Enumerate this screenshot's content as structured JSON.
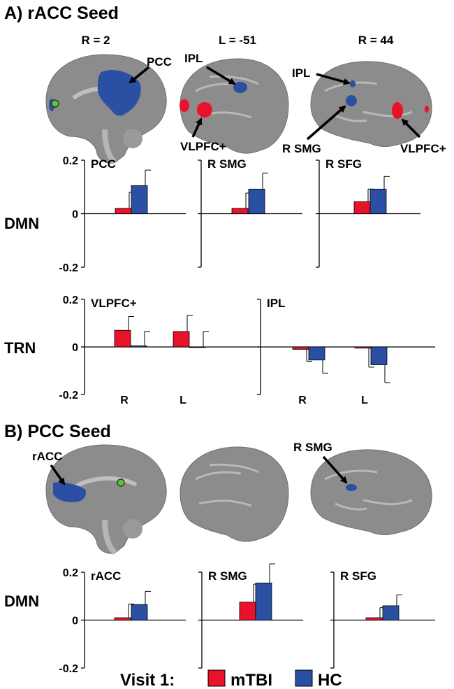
{
  "panel_a": {
    "title": "A) rACC Seed",
    "coords": [
      "R = 2",
      "L = -51",
      "R = 44"
    ],
    "brain_labels": [
      "PCC",
      "IPL",
      "VLPFC+",
      "IPL",
      "R SMG",
      "VLPFC+"
    ],
    "row_labels": [
      "DMN",
      "TRN"
    ]
  },
  "panel_b": {
    "title": "B) PCC Seed",
    "brain_labels": [
      "rACC",
      "R SMG"
    ],
    "row_labels": [
      "DMN"
    ]
  },
  "legend": {
    "prefix": "Visit 1:",
    "items": [
      {
        "label": "mTBI",
        "color": "#e8122a"
      },
      {
        "label": "HC",
        "color": "#2b4fa2"
      }
    ]
  },
  "colors": {
    "mTBI": "#e8122a",
    "HC": "#2b4fa2",
    "brain": "#8c8c8c",
    "seed": "#63c23a"
  },
  "y_tick_labels": [
    "0.2",
    "0",
    "-0.2"
  ],
  "chart_data": [
    {
      "type": "bar",
      "title": "PCC",
      "ylim": [
        -0.2,
        0.2
      ],
      "categories": [
        ""
      ],
      "series": [
        {
          "name": "mTBI",
          "values": [
            0.02
          ],
          "errors": [
            0.06
          ]
        },
        {
          "name": "HC",
          "values": [
            0.105
          ],
          "errors": [
            0.058
          ]
        }
      ]
    },
    {
      "type": "bar",
      "title": "R SMG",
      "ylim": [
        -0.2,
        0.2
      ],
      "categories": [
        ""
      ],
      "series": [
        {
          "name": "mTBI",
          "values": [
            0.02
          ],
          "errors": [
            0.057
          ]
        },
        {
          "name": "HC",
          "values": [
            0.092
          ],
          "errors": [
            0.06
          ]
        }
      ]
    },
    {
      "type": "bar",
      "title": "R SFG",
      "ylim": [
        -0.2,
        0.2
      ],
      "categories": [
        ""
      ],
      "series": [
        {
          "name": "mTBI",
          "values": [
            0.045
          ],
          "errors": [
            0.047
          ]
        },
        {
          "name": "HC",
          "values": [
            0.092
          ],
          "errors": [
            0.047
          ]
        }
      ]
    },
    {
      "type": "bar",
      "title": "VLPFC+",
      "ylim": [
        -0.2,
        0.2
      ],
      "categories": [
        "R",
        "L"
      ],
      "series": [
        {
          "name": "mTBI",
          "values": [
            0.07,
            0.065
          ],
          "errors": [
            0.058,
            0.068
          ]
        },
        {
          "name": "HC",
          "values": [
            0.005,
            0.0
          ],
          "errors": [
            0.06,
            0.065
          ]
        }
      ]
    },
    {
      "type": "bar",
      "title": "IPL",
      "ylim": [
        -0.2,
        0.2
      ],
      "categories": [
        "R",
        "L"
      ],
      "series": [
        {
          "name": "mTBI",
          "values": [
            -0.01,
            -0.005
          ],
          "errors": [
            0.05,
            0.08
          ]
        },
        {
          "name": "HC",
          "values": [
            -0.055,
            -0.075
          ],
          "errors": [
            0.055,
            0.075
          ]
        }
      ]
    },
    {
      "type": "bar",
      "title": "rACC",
      "ylim": [
        -0.2,
        0.2
      ],
      "categories": [
        ""
      ],
      "series": [
        {
          "name": "mTBI",
          "values": [
            0.01
          ],
          "errors": [
            0.057
          ]
        },
        {
          "name": "HC",
          "values": [
            0.065
          ],
          "errors": [
            0.055
          ]
        }
      ]
    },
    {
      "type": "bar",
      "title": "R SMG",
      "ylim": [
        -0.2,
        0.2
      ],
      "categories": [
        ""
      ],
      "series": [
        {
          "name": "mTBI",
          "values": [
            0.075
          ],
          "errors": [
            0.075
          ]
        },
        {
          "name": "HC",
          "values": [
            0.155
          ],
          "errors": [
            0.08
          ]
        }
      ]
    },
    {
      "type": "bar",
      "title": "R SFG",
      "ylim": [
        -0.2,
        0.2
      ],
      "categories": [
        ""
      ],
      "series": [
        {
          "name": "mTBI",
          "values": [
            0.01
          ],
          "errors": [
            0.042
          ]
        },
        {
          "name": "HC",
          "values": [
            0.06
          ],
          "errors": [
            0.045
          ]
        }
      ]
    }
  ]
}
